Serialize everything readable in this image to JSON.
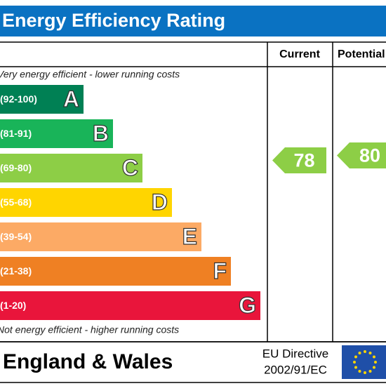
{
  "header": {
    "title": "Energy Efficiency Rating"
  },
  "columns": [
    "Current",
    "Potential"
  ],
  "top_note": "Very energy efficient - lower running costs",
  "bands": [
    {
      "range": "(92-100)",
      "letter": "A",
      "color": "#008054"
    },
    {
      "range": "(81-91)",
      "letter": "B",
      "color": "#19b459"
    },
    {
      "range": "(69-80)",
      "letter": "C",
      "color": "#8dce46"
    },
    {
      "range": "(55-68)",
      "letter": "D",
      "color": "#ffd500"
    },
    {
      "range": "(39-54)",
      "letter": "E",
      "color": "#fcaa65"
    },
    {
      "range": "(21-38)",
      "letter": "F",
      "color": "#ef8023"
    },
    {
      "range": "(1-20)",
      "letter": "G",
      "color": "#e9153b"
    }
  ],
  "bottom_note": "Not energy efficient - higher running costs",
  "ratings": {
    "current": 78,
    "potential": 80
  },
  "footer": {
    "region": "England & Wales",
    "directive": [
      "EU Directive",
      "2002/91/EC"
    ]
  }
}
